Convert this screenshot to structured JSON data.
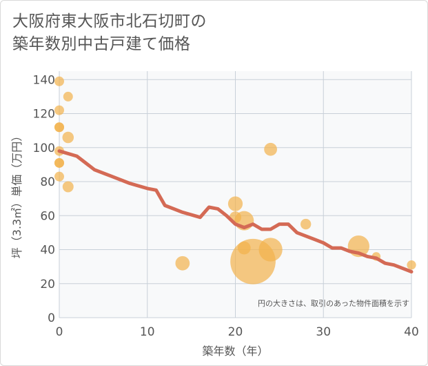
{
  "chart_data": {
    "type": "scatter",
    "title_lines": [
      "大阪府東大阪市北石切町の",
      "築年数別中古戸建て価格"
    ],
    "xlabel": "築年数（年）",
    "ylabel": "坪（3.3㎡）単価（万円）",
    "xlim": [
      0,
      40
    ],
    "ylim": [
      0,
      145
    ],
    "x_ticks": [
      0,
      10,
      20,
      30,
      40
    ],
    "y_ticks": [
      0,
      20,
      40,
      60,
      80,
      100,
      120,
      140
    ],
    "note": "円の大きさは、取引のあった物件面積を示す",
    "colors": {
      "bubble": "#f2b24c",
      "line": "#d46a55",
      "grid": "#c8d0d8",
      "plot_bg": "#f8f9fa"
    },
    "bubbles": [
      {
        "x": 0,
        "y": 139,
        "size": 1
      },
      {
        "x": 0,
        "y": 122,
        "size": 1
      },
      {
        "x": 0,
        "y": 112,
        "size": 1
      },
      {
        "x": 0,
        "y": 112,
        "size": 1
      },
      {
        "x": 0,
        "y": 98,
        "size": 1
      },
      {
        "x": 0,
        "y": 91,
        "size": 1
      },
      {
        "x": 0,
        "y": 91,
        "size": 1
      },
      {
        "x": 0,
        "y": 83,
        "size": 1
      },
      {
        "x": 1,
        "y": 130,
        "size": 1
      },
      {
        "x": 1,
        "y": 106,
        "size": 1.4
      },
      {
        "x": 1,
        "y": 77,
        "size": 1.3
      },
      {
        "x": 14,
        "y": 32,
        "size": 2.2
      },
      {
        "x": 20,
        "y": 67,
        "size": 2.3
      },
      {
        "x": 20,
        "y": 59,
        "size": 1.5
      },
      {
        "x": 21,
        "y": 57,
        "size": 4
      },
      {
        "x": 21,
        "y": 41,
        "size": 1.8
      },
      {
        "x": 22,
        "y": 33,
        "size": 22
      },
      {
        "x": 24,
        "y": 99,
        "size": 1.8
      },
      {
        "x": 24,
        "y": 40,
        "size": 6
      },
      {
        "x": 28,
        "y": 55,
        "size": 1.2
      },
      {
        "x": 34,
        "y": 42,
        "size": 5
      },
      {
        "x": 36,
        "y": 36,
        "size": 0.8
      },
      {
        "x": 40,
        "y": 31,
        "size": 0.9
      }
    ],
    "trend_line": {
      "x": [
        0,
        2,
        4,
        6,
        8,
        10,
        11,
        12,
        14,
        16,
        17,
        18,
        19,
        20,
        21,
        22,
        23,
        24,
        25,
        26,
        27,
        28,
        29,
        30,
        31,
        32,
        33,
        34,
        35,
        36,
        37,
        38,
        39,
        40
      ],
      "y": [
        98,
        95,
        87,
        83,
        79,
        76,
        75,
        66,
        62,
        59,
        65,
        64,
        60,
        55,
        53,
        55,
        52,
        52,
        55,
        55,
        50,
        48,
        46,
        44,
        41,
        41,
        39,
        38,
        36,
        35,
        32,
        31,
        29,
        27
      ]
    }
  }
}
